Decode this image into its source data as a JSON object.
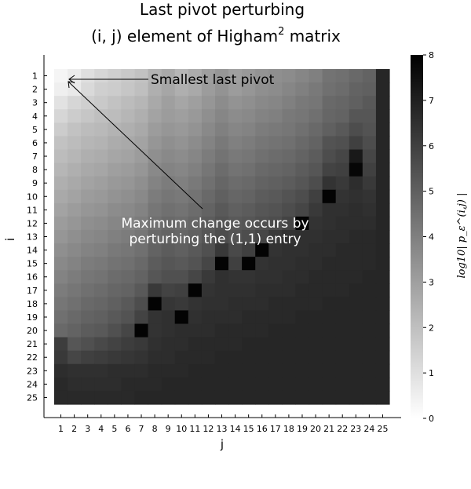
{
  "chart_data": {
    "type": "heatmap",
    "title_line1": "Last pivot perturbing",
    "title_line2_prefix": "(i, j) element of Higham",
    "title_line2_sup": "2",
    "title_line2_suffix": " matrix",
    "xlabel": "j",
    "ylabel": "i",
    "colorbar_label": "log10| p_ε^(i,j) |",
    "colorbar_range": [
      0,
      8
    ],
    "colorbar_ticks": [
      "0",
      "1",
      "2",
      "3",
      "4",
      "5",
      "6",
      "7",
      "8"
    ],
    "colormap": {
      "low": "#ffffff",
      "high": "#000000"
    },
    "x_ticks": [
      "1",
      "2",
      "3",
      "4",
      "5",
      "6",
      "7",
      "8",
      "9",
      "10",
      "11",
      "12",
      "13",
      "14",
      "15",
      "16",
      "17",
      "18",
      "19",
      "20",
      "21",
      "22",
      "23",
      "24",
      "25"
    ],
    "y_ticks": [
      "1",
      "2",
      "3",
      "4",
      "5",
      "6",
      "7",
      "8",
      "9",
      "10",
      "11",
      "12",
      "13",
      "14",
      "15",
      "16",
      "17",
      "18",
      "19",
      "20",
      "21",
      "22",
      "23",
      "24",
      "25"
    ],
    "annotations": [
      {
        "text": "Smallest last pivot",
        "color": "#000000",
        "arrow_to": [
          2,
          1
        ]
      },
      {
        "text_line1": "Maximum change occurs by",
        "text_line2": "perturbing the (1,1) entry",
        "color": "#ffffff",
        "arrow_to": [
          2,
          1
        ]
      }
    ],
    "values": [
      [
        0.3,
        0.6,
        1.0,
        1.3,
        1.5,
        1.7,
        1.9,
        2.4,
        2.7,
        2.3,
        2.6,
        3.0,
        3.3,
        3.0,
        3.2,
        3.4,
        3.5,
        3.6,
        3.8,
        4.0,
        4.4,
        4.5,
        4.7,
        4.9,
        6.8
      ],
      [
        0.5,
        0.7,
        1.2,
        1.5,
        1.6,
        1.8,
        2.0,
        2.5,
        2.8,
        2.5,
        2.7,
        3.1,
        3.4,
        3.1,
        3.3,
        3.5,
        3.6,
        3.8,
        4.0,
        4.2,
        4.5,
        4.6,
        4.9,
        5.0,
        6.8
      ],
      [
        0.9,
        1.3,
        1.5,
        1.7,
        1.9,
        2.1,
        2.3,
        2.7,
        3.0,
        2.8,
        3.0,
        3.3,
        3.6,
        3.4,
        3.5,
        3.7,
        3.8,
        4.0,
        4.2,
        4.3,
        4.7,
        4.8,
        5.0,
        5.2,
        6.8
      ],
      [
        1.3,
        1.6,
        1.8,
        2.0,
        2.1,
        2.3,
        2.5,
        2.9,
        3.1,
        3.0,
        3.2,
        3.5,
        3.8,
        3.6,
        3.7,
        3.9,
        4.0,
        4.2,
        4.3,
        4.5,
        4.8,
        4.9,
        5.3,
        5.3,
        6.8
      ],
      [
        1.6,
        1.9,
        2.1,
        2.2,
        2.4,
        2.5,
        2.7,
        3.1,
        3.3,
        3.2,
        3.4,
        3.7,
        4.0,
        3.8,
        3.9,
        4.1,
        4.2,
        4.3,
        4.5,
        4.7,
        5.0,
        5.2,
        5.6,
        5.4,
        6.8
      ],
      [
        1.9,
        2.1,
        2.3,
        2.4,
        2.6,
        2.7,
        2.9,
        3.3,
        3.5,
        3.4,
        3.6,
        3.9,
        4.2,
        4.0,
        4.1,
        4.3,
        4.4,
        4.5,
        4.7,
        4.9,
        5.4,
        5.5,
        6.0,
        5.6,
        6.8
      ],
      [
        2.1,
        2.3,
        2.5,
        2.6,
        2.8,
        2.9,
        3.1,
        3.5,
        3.7,
        3.6,
        3.8,
        4.1,
        4.4,
        4.2,
        4.3,
        4.5,
        4.6,
        4.7,
        4.9,
        5.1,
        5.6,
        5.8,
        7.2,
        5.8,
        6.8
      ],
      [
        2.3,
        2.5,
        2.7,
        2.8,
        3.0,
        3.1,
        3.3,
        3.7,
        3.9,
        3.8,
        4.0,
        4.3,
        4.6,
        4.4,
        4.5,
        4.7,
        4.8,
        4.9,
        5.1,
        5.3,
        5.9,
        6.0,
        7.8,
        6.0,
        6.8
      ],
      [
        2.5,
        2.7,
        2.9,
        3.0,
        3.2,
        3.3,
        3.5,
        3.9,
        4.1,
        4.0,
        4.2,
        4.5,
        4.8,
        4.6,
        4.7,
        4.9,
        5.0,
        5.1,
        5.3,
        5.6,
        6.4,
        6.2,
        6.6,
        6.2,
        6.8
      ],
      [
        2.7,
        2.9,
        3.1,
        3.2,
        3.4,
        3.5,
        3.7,
        4.1,
        4.3,
        4.2,
        4.4,
        4.7,
        5.0,
        4.8,
        4.9,
        5.1,
        5.2,
        5.4,
        5.6,
        6.0,
        7.9,
        6.4,
        6.5,
        6.4,
        6.8
      ],
      [
        2.9,
        3.1,
        3.3,
        3.4,
        3.6,
        3.7,
        3.9,
        4.3,
        4.5,
        4.4,
        4.6,
        4.9,
        5.2,
        5.0,
        5.1,
        5.3,
        5.4,
        5.6,
        5.8,
        6.2,
        6.5,
        6.5,
        6.6,
        6.5,
        6.8
      ],
      [
        3.1,
        3.3,
        3.5,
        3.6,
        3.8,
        3.9,
        4.1,
        4.5,
        4.7,
        4.6,
        4.8,
        5.1,
        5.4,
        5.2,
        5.3,
        5.5,
        5.6,
        5.9,
        7.9,
        6.4,
        6.5,
        6.6,
        6.6,
        6.6,
        6.8
      ],
      [
        3.3,
        3.5,
        3.7,
        3.8,
        4.0,
        4.1,
        4.3,
        4.7,
        4.9,
        4.8,
        5.0,
        5.3,
        5.6,
        5.4,
        5.6,
        5.8,
        6.2,
        6.4,
        6.5,
        6.5,
        6.6,
        6.6,
        6.7,
        6.7,
        6.8
      ],
      [
        3.5,
        3.7,
        3.9,
        4.0,
        4.2,
        4.3,
        4.5,
        4.9,
        5.1,
        5.0,
        5.2,
        5.5,
        6.2,
        5.7,
        6.0,
        7.9,
        6.4,
        6.5,
        6.5,
        6.6,
        6.6,
        6.7,
        6.7,
        6.7,
        6.8
      ],
      [
        3.7,
        3.9,
        4.1,
        4.2,
        4.4,
        4.5,
        4.7,
        5.1,
        5.3,
        5.2,
        5.4,
        5.8,
        7.9,
        6.0,
        7.9,
        6.4,
        6.5,
        6.5,
        6.6,
        6.6,
        6.7,
        6.7,
        6.7,
        6.7,
        6.8
      ],
      [
        3.9,
        4.1,
        4.3,
        4.4,
        4.6,
        4.7,
        4.9,
        5.3,
        5.5,
        5.5,
        5.8,
        6.2,
        6.5,
        6.4,
        6.4,
        6.5,
        6.5,
        6.6,
        6.6,
        6.7,
        6.7,
        6.7,
        6.7,
        6.8,
        6.8
      ],
      [
        4.1,
        4.3,
        4.5,
        4.6,
        4.8,
        4.9,
        5.2,
        6.2,
        5.9,
        6.0,
        7.9,
        6.4,
        6.5,
        6.5,
        6.5,
        6.6,
        6.6,
        6.6,
        6.7,
        6.7,
        6.7,
        6.7,
        6.8,
        6.8,
        6.8
      ],
      [
        4.3,
        4.5,
        4.7,
        4.8,
        5.0,
        5.2,
        5.6,
        7.9,
        6.3,
        6.2,
        6.4,
        6.5,
        6.5,
        6.6,
        6.6,
        6.6,
        6.7,
        6.7,
        6.7,
        6.7,
        6.8,
        6.8,
        6.8,
        6.8,
        6.8
      ],
      [
        4.5,
        4.7,
        4.9,
        5.0,
        5.2,
        5.4,
        5.9,
        6.4,
        6.5,
        7.9,
        6.5,
        6.6,
        6.6,
        6.6,
        6.7,
        6.7,
        6.7,
        6.7,
        6.8,
        6.8,
        6.8,
        6.8,
        6.8,
        6.8,
        6.8
      ],
      [
        4.7,
        4.9,
        5.1,
        5.2,
        5.5,
        5.8,
        7.9,
        6.4,
        6.5,
        6.6,
        6.6,
        6.6,
        6.7,
        6.7,
        6.7,
        6.7,
        6.8,
        6.8,
        6.8,
        6.8,
        6.8,
        6.8,
        6.8,
        6.8,
        6.8
      ],
      [
        6.1,
        5.3,
        5.5,
        5.7,
        5.9,
        6.1,
        6.2,
        6.5,
        6.6,
        6.6,
        6.7,
        6.7,
        6.7,
        6.7,
        6.8,
        6.8,
        6.8,
        6.8,
        6.8,
        6.8,
        6.8,
        6.8,
        6.8,
        6.8,
        6.8
      ],
      [
        6.2,
        5.8,
        6.0,
        6.1,
        6.2,
        6.3,
        6.4,
        6.6,
        6.6,
        6.7,
        6.7,
        6.7,
        6.8,
        6.8,
        6.8,
        6.8,
        6.8,
        6.8,
        6.8,
        6.8,
        6.8,
        6.8,
        6.8,
        6.8,
        6.8
      ],
      [
        6.6,
        6.5,
        6.5,
        6.5,
        6.6,
        6.6,
        6.6,
        6.7,
        6.7,
        6.7,
        6.8,
        6.8,
        6.8,
        6.8,
        6.8,
        6.8,
        6.8,
        6.8,
        6.8,
        6.8,
        6.8,
        6.8,
        6.8,
        6.8,
        6.8
      ],
      [
        6.7,
        6.6,
        6.6,
        6.6,
        6.6,
        6.7,
        6.7,
        6.7,
        6.8,
        6.8,
        6.8,
        6.8,
        6.8,
        6.8,
        6.8,
        6.8,
        6.8,
        6.8,
        6.8,
        6.8,
        6.8,
        6.8,
        6.8,
        6.8,
        6.8
      ],
      [
        6.7,
        6.7,
        6.7,
        6.7,
        6.7,
        6.7,
        6.8,
        6.8,
        6.8,
        6.8,
        6.8,
        6.8,
        6.8,
        6.8,
        6.8,
        6.8,
        6.8,
        6.8,
        6.8,
        6.8,
        6.8,
        6.8,
        6.8,
        6.8,
        6.8
      ]
    ]
  }
}
